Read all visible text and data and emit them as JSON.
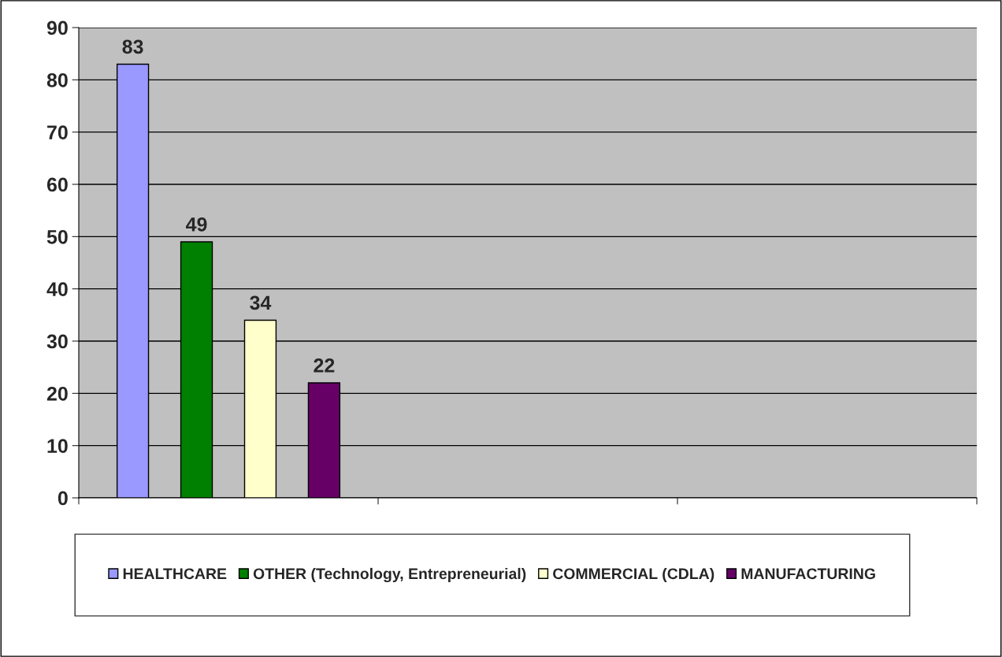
{
  "chart_data": {
    "type": "bar",
    "categories": [
      null,
      null,
      null
    ],
    "series": [
      {
        "name": "HEALTHCARE",
        "color": "#9999ff",
        "values": [
          83,
          null,
          null
        ]
      },
      {
        "name": "OTHER (Technology, Entrepreneurial)",
        "color": "#008000",
        "values": [
          49,
          null,
          null
        ]
      },
      {
        "name": "COMMERCIAL (CDLA)",
        "color": "#ffffcc",
        "values": [
          34,
          null,
          null
        ]
      },
      {
        "name": "MANUFACTURING",
        "color": "#660066",
        "values": [
          22,
          null,
          null
        ]
      }
    ],
    "ylim": [
      0,
      90
    ],
    "yticks": [
      0,
      10,
      20,
      30,
      40,
      50,
      60,
      70,
      80,
      90
    ],
    "grid": "y",
    "legend": "bottom",
    "data_labels": true
  }
}
